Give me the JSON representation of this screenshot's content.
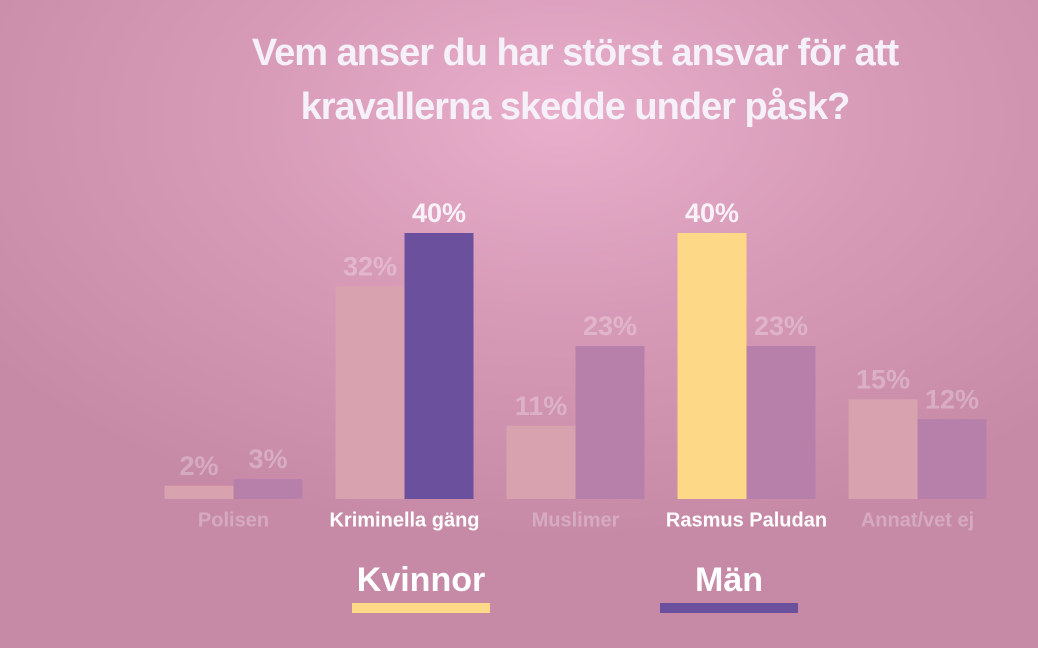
{
  "chart_data": {
    "type": "bar",
    "title": "Vem anser du har störst ansvar för att kravallerna skedde under påsk?",
    "categories": [
      "Polisen",
      "Kriminella gäng",
      "Muslimer",
      "Rasmus Paludan",
      "Annat/vet ej"
    ],
    "series": [
      {
        "name": "Kvinnor",
        "color": "#fcd887",
        "colors": [
          "#d8a2ae",
          "#d8a2ae",
          "#d8a2ae",
          "#fcd887",
          "#d8a2ae"
        ],
        "values": [
          2,
          32,
          11,
          40,
          15
        ],
        "value_labels": [
          "2%",
          "32%",
          "11%",
          "40%",
          "15%"
        ]
      },
      {
        "name": "Män",
        "color": "#6b509d",
        "colors": [
          "#b780aa",
          "#6b509d",
          "#b780aa",
          "#b780aa",
          "#b780aa"
        ],
        "values": [
          3,
          40,
          23,
          23,
          12
        ],
        "value_labels": [
          "3%",
          "40%",
          "23%",
          "23%",
          "12%"
        ]
      }
    ]
  }
}
